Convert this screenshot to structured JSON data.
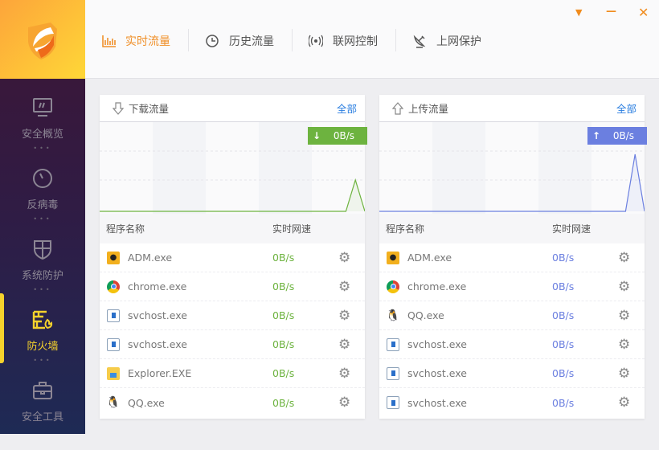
{
  "window_controls": {
    "menu": "▼",
    "minimize": "—",
    "close": "✕"
  },
  "sidebar": {
    "items": [
      {
        "label": "安全概览",
        "icon": "monitor-icon"
      },
      {
        "label": "反病毒",
        "icon": "gauge-icon"
      },
      {
        "label": "系统防护",
        "icon": "shield-icon"
      },
      {
        "label": "防火墙",
        "icon": "firewall-icon",
        "active": true
      },
      {
        "label": "安全工具",
        "icon": "toolbox-icon"
      }
    ],
    "dots": "•••"
  },
  "tabs": [
    {
      "label": "实时流量",
      "icon": "bar-chart-icon",
      "active": true
    },
    {
      "label": "历史流量",
      "icon": "clock-icon"
    },
    {
      "label": "联网控制",
      "icon": "signal-icon"
    },
    {
      "label": "上网保护",
      "icon": "satellite-icon"
    }
  ],
  "colors": {
    "accent": "#f0902a",
    "download": "#6db33f",
    "upload": "#6b7fe0",
    "link": "#2a7ee0"
  },
  "download": {
    "title": "下载流量",
    "all": "全部",
    "current": "0B/s",
    "arrow": "↓",
    "col_name": "程序名称",
    "col_speed": "实时网速",
    "history": [
      0,
      0,
      0,
      0,
      0,
      0,
      0,
      0,
      0,
      0,
      0,
      0,
      0,
      0,
      0,
      0,
      0,
      0,
      0,
      0,
      0,
      0,
      0,
      0,
      0,
      0,
      0,
      0.55,
      0
    ],
    "rows": [
      {
        "name": "ADM.exe",
        "speed": "0B/s",
        "icon": "adm"
      },
      {
        "name": "chrome.exe",
        "speed": "0B/s",
        "icon": "chrome"
      },
      {
        "name": "svchost.exe",
        "speed": "0B/s",
        "icon": "window"
      },
      {
        "name": "svchost.exe",
        "speed": "0B/s",
        "icon": "window"
      },
      {
        "name": "Explorer.EXE",
        "speed": "0B/s",
        "icon": "folder"
      },
      {
        "name": "QQ.exe",
        "speed": "0B/s",
        "icon": "qq"
      }
    ]
  },
  "upload": {
    "title": "上传流量",
    "all": "全部",
    "current": "0B/s",
    "arrow": "↑",
    "col_name": "程序名称",
    "col_speed": "实时网速",
    "history": [
      0,
      0,
      0,
      0,
      0,
      0,
      0,
      0,
      0,
      0,
      0,
      0,
      0,
      0,
      0,
      0,
      0,
      0,
      0,
      0,
      0,
      0,
      0,
      0,
      0,
      0,
      0,
      1,
      0
    ],
    "rows": [
      {
        "name": "ADM.exe",
        "speed": "0B/s",
        "icon": "adm"
      },
      {
        "name": "chrome.exe",
        "speed": "0B/s",
        "icon": "chrome"
      },
      {
        "name": "QQ.exe",
        "speed": "0B/s",
        "icon": "qq"
      },
      {
        "name": "svchost.exe",
        "speed": "0B/s",
        "icon": "window"
      },
      {
        "name": "svchost.exe",
        "speed": "0B/s",
        "icon": "window"
      },
      {
        "name": "svchost.exe",
        "speed": "0B/s",
        "icon": "window"
      }
    ]
  }
}
